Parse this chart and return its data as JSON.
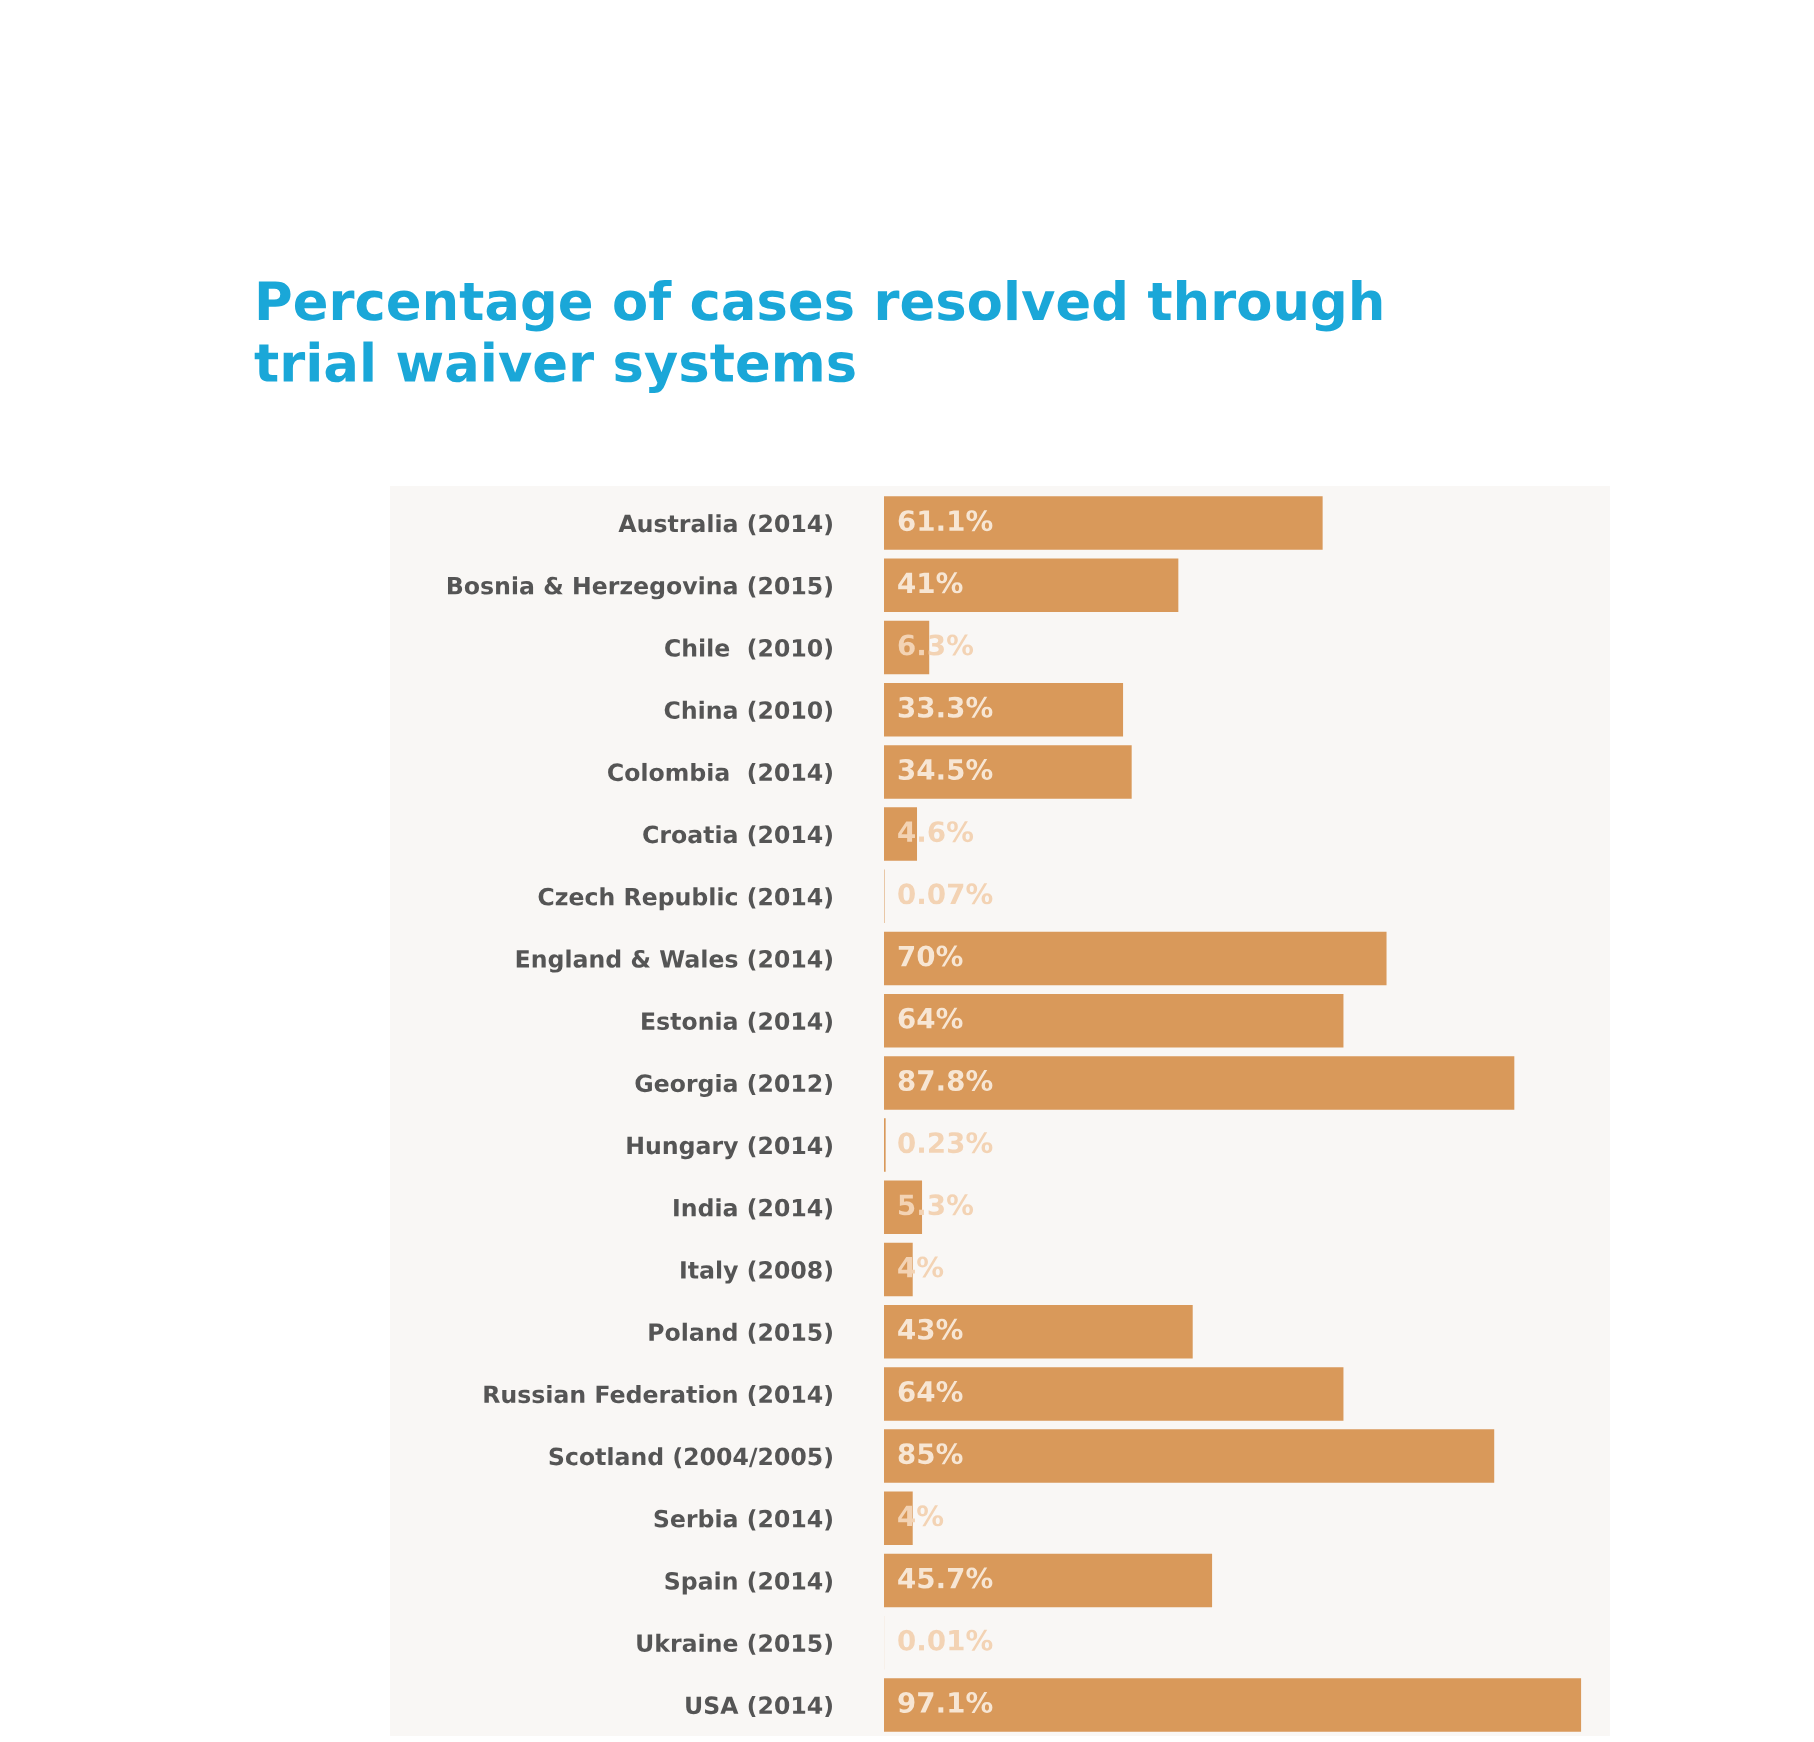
{
  "chart_data": {
    "type": "bar",
    "orientation": "horizontal",
    "title": "Percentage of cases resolved through\ntrial waiver systems",
    "categories": [
      "Australia (2014)",
      "Bosnia & Herzegovina (2015)",
      "Chile  (2010)",
      "China (2010)",
      "Colombia  (2014)",
      "Croatia (2014)",
      "Czech Republic (2014)",
      "England & Wales (2014)",
      "Estonia (2014)",
      "Georgia (2012)",
      "Hungary (2014)",
      "India (2014)",
      "Italy (2008)",
      "Poland (2015)",
      "Russian Federation (2014)",
      "Scotland (2004/2005)",
      "Serbia (2014)",
      "Spain (2014)",
      "Ukraine (2015)",
      "USA (2014)"
    ],
    "values": [
      61.1,
      41,
      6.3,
      33.3,
      34.5,
      4.6,
      0.07,
      70,
      64,
      87.8,
      0.23,
      5.3,
      4,
      43,
      64,
      85,
      4,
      45.7,
      0.01,
      97.1
    ],
    "value_labels": [
      "61.1%",
      "41%",
      "6.3%",
      "33.3%",
      "34.5%",
      "4.6%",
      "0.07%",
      "70%",
      "64%",
      "87.8%",
      "0.23%",
      "5.3%",
      "4%",
      "43%",
      "64%",
      "85%",
      "4%",
      "45.7%",
      "0.01%",
      "97.1%"
    ],
    "color": "#d9995a",
    "grid": false,
    "legend": false
  }
}
